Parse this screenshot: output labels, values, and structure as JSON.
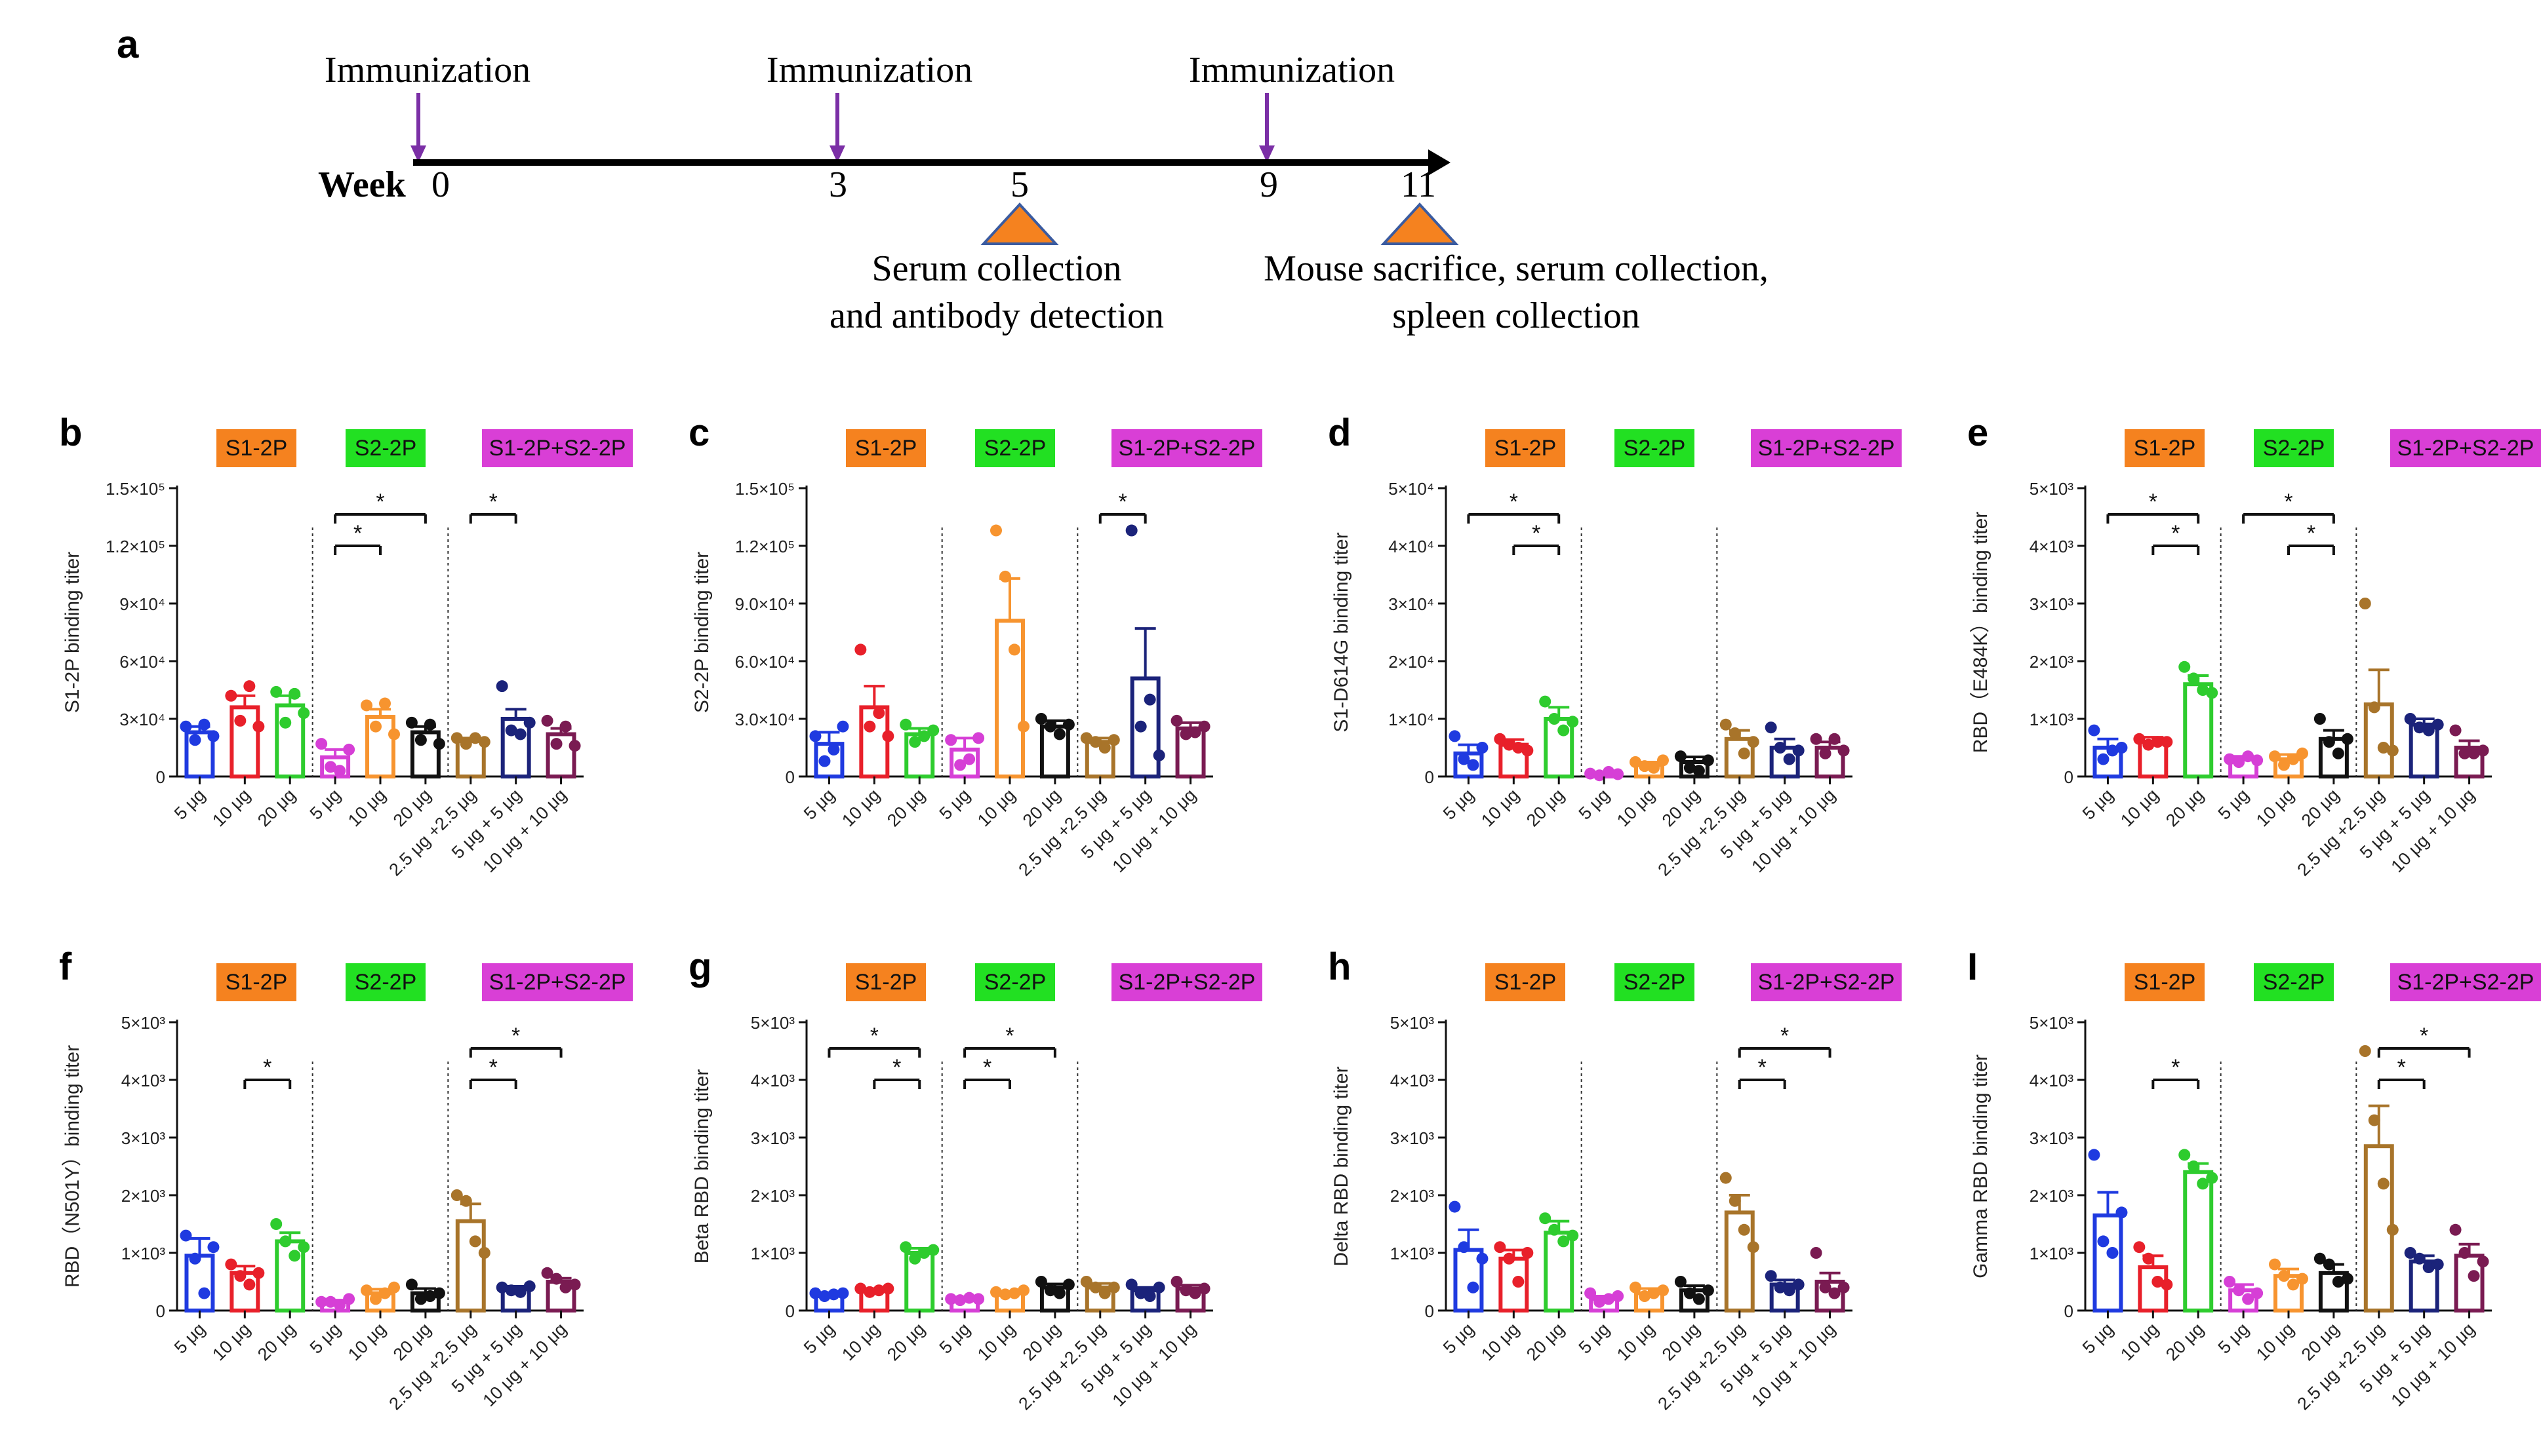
{
  "figure": {
    "colors": {
      "S1-2P": "#f5821f",
      "S2-2P": "#22e022",
      "S1-2P+S2-2P": "#d93fd6",
      "axis": "#111111",
      "timeline_arrow": "#7b2fa6",
      "collect_triangle": "#f5821f",
      "collect_triangle_edge": "#3a5ba0"
    },
    "panel_a": {
      "letter": "a",
      "week_label": "Week",
      "immunization_label": "Immunization",
      "weeks": [
        "0",
        "3",
        "5",
        "9",
        "11"
      ],
      "events": [
        {
          "lines": [
            "Serum collection",
            "and antibody detection"
          ]
        },
        {
          "lines": [
            "Mouse sacrifice, serum collection,",
            "spleen collection"
          ]
        }
      ]
    }
  },
  "chart_data": [
    {
      "panel": "b",
      "type": "bar",
      "ylabel": "S1-2P binding titer",
      "yticks": [
        "0",
        "3×10⁴",
        "6×10⁴",
        "9×10⁴",
        "1.2×10⁵",
        "1.5×10⁵"
      ],
      "ylim": [
        0,
        150000
      ],
      "groups": [
        "S1-2P",
        "S2-2P",
        "S1-2P+S2-2P"
      ],
      "categories": [
        "5 μg",
        "10 μg",
        "20 μg",
        "5 μg",
        "10 μg",
        "20 μg",
        "2.5 μg +2.5 μg",
        "5 μg + 5 μg",
        "10 μg + 10 μg"
      ],
      "colors": [
        "#1f3ae0",
        "#e8202a",
        "#2ecc2e",
        "#d63fd6",
        "#f7942f",
        "#111111",
        "#a8742a",
        "#1b237a",
        "#7a1b52"
      ],
      "means": [
        23000,
        36000,
        37000,
        10000,
        31000,
        23000,
        19000,
        30000,
        22000
      ],
      "errors": [
        3000,
        6000,
        5000,
        4000,
        4000,
        3000,
        1000,
        5000,
        3000
      ],
      "points": [
        [
          26000,
          19000,
          27000,
          21000
        ],
        [
          42000,
          29000,
          47000,
          26000
        ],
        [
          44000,
          28000,
          43000,
          33000
        ],
        [
          17000,
          5000,
          3000,
          14000
        ],
        [
          37000,
          26000,
          38000,
          22000
        ],
        [
          28000,
          19000,
          27000,
          17000
        ],
        [
          20000,
          17000,
          20000,
          18000
        ],
        [
          47000,
          24000,
          22000,
          28000
        ],
        [
          29000,
          17000,
          26000,
          16000
        ]
      ],
      "sig": [
        {
          "i": 3,
          "j": 4,
          "label": "*",
          "level": 0
        },
        {
          "i": 3,
          "j": 5,
          "label": "*",
          "level": 1
        },
        {
          "i": 6,
          "j": 7,
          "label": "*",
          "level": 1
        }
      ]
    },
    {
      "panel": "c",
      "type": "bar",
      "ylabel": "S2-2P binding titer",
      "yticks": [
        "0",
        "3.0×10⁴",
        "6.0×10⁴",
        "9.0×10⁴",
        "1.2×10⁵",
        "1.5×10⁵"
      ],
      "ylim": [
        0,
        150000
      ],
      "groups": [
        "S1-2P",
        "S2-2P",
        "S1-2P+S2-2P"
      ],
      "categories": [
        "5 μg",
        "10 μg",
        "20 μg",
        "5 μg",
        "10 μg",
        "20 μg",
        "2.5 μg +2.5 μg",
        "5 μg + 5 μg",
        "10 μg + 10 μg"
      ],
      "colors": [
        "#1f3ae0",
        "#e8202a",
        "#2ecc2e",
        "#d63fd6",
        "#f7942f",
        "#111111",
        "#a8742a",
        "#1b237a",
        "#7a1b52"
      ],
      "means": [
        17000,
        36000,
        22000,
        14000,
        81000,
        26000,
        18000,
        51000,
        25000
      ],
      "errors": [
        6000,
        11000,
        3000,
        6000,
        22000,
        3000,
        2000,
        26000,
        3000
      ],
      "points": [
        [
          21000,
          8000,
          14000,
          26000
        ],
        [
          66000,
          26000,
          33000,
          21000
        ],
        [
          27000,
          18000,
          21000,
          24000
        ],
        [
          19000,
          6000,
          9000,
          20000
        ],
        [
          128000,
          104000,
          66000,
          26000
        ],
        [
          30000,
          26000,
          22000,
          27000
        ],
        [
          20000,
          18000,
          15000,
          19000
        ],
        [
          128000,
          26000,
          40000,
          11000
        ],
        [
          29000,
          22000,
          23000,
          26000
        ]
      ],
      "sig": [
        {
          "i": 6,
          "j": 7,
          "label": "*",
          "level": 1
        }
      ]
    },
    {
      "panel": "d",
      "type": "bar",
      "ylabel": "S1-D614G binding titer",
      "yticks": [
        "0",
        "1×10⁴",
        "2×10⁴",
        "3×10⁴",
        "4×10⁴",
        "5×10⁴"
      ],
      "ylim": [
        0,
        50000
      ],
      "groups": [
        "S1-2P",
        "S2-2P",
        "S1-2P+S2-2P"
      ],
      "categories": [
        "5 μg",
        "10 μg",
        "20 μg",
        "5 μg",
        "10 μg",
        "20 μg",
        "2.5 μg +2.5 μg",
        "5 μg + 5 μg",
        "10 μg + 10 μg"
      ],
      "colors": [
        "#1f3ae0",
        "#e8202a",
        "#2ecc2e",
        "#d63fd6",
        "#f7942f",
        "#111111",
        "#a8742a",
        "#1b237a",
        "#7a1b52"
      ],
      "means": [
        4000,
        5500,
        10000,
        500,
        2000,
        2500,
        6500,
        5000,
        5000
      ],
      "errors": [
        1500,
        900,
        2000,
        300,
        500,
        900,
        1500,
        1500,
        1000
      ],
      "points": [
        [
          7000,
          3000,
          2000,
          5000
        ],
        [
          6500,
          5500,
          5000,
          4500
        ],
        [
          13000,
          10000,
          8000,
          9500
        ],
        [
          500,
          200,
          800,
          400
        ],
        [
          2500,
          1800,
          1500,
          2800
        ],
        [
          3500,
          1500,
          1000,
          2800
        ],
        [
          9000,
          7500,
          4000,
          6000
        ],
        [
          8500,
          5000,
          3000,
          4500
        ],
        [
          6500,
          4000,
          6500,
          4500
        ]
      ],
      "sig": [
        {
          "i": 1,
          "j": 2,
          "label": "*",
          "level": 0
        },
        {
          "i": 0,
          "j": 2,
          "label": "*",
          "level": 1
        }
      ]
    },
    {
      "panel": "e",
      "type": "bar",
      "ylabel": "RBD（E484K）binding titer",
      "yticks": [
        "0",
        "1×10³",
        "2×10³",
        "3×10³",
        "4×10³",
        "5×10³"
      ],
      "ylim": [
        0,
        5000
      ],
      "groups": [
        "S1-2P",
        "S2-2P",
        "S1-2P+S2-2P"
      ],
      "categories": [
        "5 μg",
        "10 μg",
        "20 μg",
        "5 μg",
        "10 μg",
        "20 μg",
        "2.5 μg +2.5 μg",
        "5 μg + 5 μg",
        "10 μg + 10 μg"
      ],
      "colors": [
        "#1f3ae0",
        "#e8202a",
        "#2ecc2e",
        "#d63fd6",
        "#f7942f",
        "#111111",
        "#a8742a",
        "#1b237a",
        "#7a1b52"
      ],
      "means": [
        500,
        600,
        1600,
        300,
        300,
        650,
        1250,
        900,
        500
      ],
      "errors": [
        150,
        80,
        150,
        50,
        80,
        150,
        600,
        100,
        120
      ],
      "points": [
        [
          800,
          300,
          450,
          500
        ],
        [
          650,
          550,
          600,
          600
        ],
        [
          1900,
          1700,
          1500,
          1450
        ],
        [
          300,
          250,
          350,
          280
        ],
        [
          350,
          200,
          300,
          400
        ],
        [
          1000,
          600,
          400,
          650
        ],
        [
          3000,
          1200,
          500,
          450
        ],
        [
          1000,
          850,
          800,
          900
        ],
        [
          800,
          400,
          400,
          450
        ]
      ],
      "sig": [
        {
          "i": 1,
          "j": 2,
          "label": "*",
          "level": 0
        },
        {
          "i": 0,
          "j": 2,
          "label": "*",
          "level": 1
        },
        {
          "i": 4,
          "j": 5,
          "label": "*",
          "level": 0
        },
        {
          "i": 3,
          "j": 5,
          "label": "*",
          "level": 1
        }
      ]
    },
    {
      "panel": "f",
      "type": "bar",
      "ylabel": "RBD（N501Y）binding titer",
      "yticks": [
        "0",
        "1×10³",
        "2×10³",
        "3×10³",
        "4×10³",
        "5×10³"
      ],
      "ylim": [
        0,
        5000
      ],
      "groups": [
        "S1-2P",
        "S2-2P",
        "S1-2P+S2-2P"
      ],
      "categories": [
        "5 μg",
        "10 μg",
        "20 μg",
        "5 μg",
        "10 μg",
        "20 μg",
        "2.5 μg +2.5 μg",
        "5 μg + 5 μg",
        "10 μg + 10 μg"
      ],
      "colors": [
        "#1f3ae0",
        "#e8202a",
        "#2ecc2e",
        "#d63fd6",
        "#f7942f",
        "#111111",
        "#a8742a",
        "#1b237a",
        "#7a1b52"
      ],
      "means": [
        950,
        650,
        1200,
        150,
        300,
        300,
        1550,
        380,
        500
      ],
      "errors": [
        300,
        120,
        150,
        30,
        70,
        80,
        300,
        40,
        60
      ],
      "points": [
        [
          1300,
          900,
          300,
          1100
        ],
        [
          800,
          600,
          450,
          650
        ],
        [
          1500,
          1200,
          950,
          1100
        ],
        [
          150,
          150,
          100,
          200
        ],
        [
          350,
          200,
          300,
          400
        ],
        [
          450,
          200,
          250,
          300
        ],
        [
          2000,
          1900,
          1200,
          1000
        ],
        [
          400,
          350,
          320,
          420
        ],
        [
          650,
          550,
          400,
          450
        ]
      ],
      "sig": [
        {
          "i": 1,
          "j": 2,
          "label": "*",
          "level": 0
        },
        {
          "i": 6,
          "j": 7,
          "label": "*",
          "level": 0
        },
        {
          "i": 6,
          "j": 8,
          "label": "*",
          "level": 1
        }
      ]
    },
    {
      "panel": "g",
      "type": "bar",
      "ylabel": "Beta RBD binding titer",
      "yticks": [
        "0",
        "1×10³",
        "2×10³",
        "3×10³",
        "4×10³",
        "5×10³"
      ],
      "ylim": [
        0,
        5000
      ],
      "groups": [
        "S1-2P",
        "S2-2P",
        "S1-2P+S2-2P"
      ],
      "categories": [
        "5 μg",
        "10 μg",
        "20 μg",
        "5 μg",
        "10 μg",
        "20 μg",
        "2.5 μg +2.5 μg",
        "5 μg + 5 μg",
        "10 μg + 10 μg"
      ],
      "colors": [
        "#1f3ae0",
        "#e8202a",
        "#2ecc2e",
        "#d63fd6",
        "#f7942f",
        "#111111",
        "#a8742a",
        "#1b237a",
        "#7a1b52"
      ],
      "means": [
        280,
        350,
        1000,
        200,
        300,
        400,
        400,
        350,
        380
      ],
      "errors": [
        30,
        30,
        80,
        20,
        30,
        60,
        70,
        50,
        60
      ],
      "points": [
        [
          300,
          250,
          280,
          300
        ],
        [
          380,
          320,
          350,
          380
        ],
        [
          1100,
          900,
          1000,
          1050
        ],
        [
          200,
          180,
          220,
          200
        ],
        [
          320,
          280,
          300,
          350
        ],
        [
          500,
          350,
          300,
          450
        ],
        [
          500,
          400,
          300,
          400
        ],
        [
          450,
          300,
          250,
          400
        ],
        [
          500,
          350,
          300,
          380
        ]
      ],
      "sig": [
        {
          "i": 1,
          "j": 2,
          "label": "*",
          "level": 0
        },
        {
          "i": 0,
          "j": 2,
          "label": "*",
          "level": 1
        },
        {
          "i": 3,
          "j": 4,
          "label": "*",
          "level": 0
        },
        {
          "i": 3,
          "j": 5,
          "label": "*",
          "level": 1
        }
      ]
    },
    {
      "panel": "h",
      "type": "bar",
      "ylabel": "Delta RBD binding titer",
      "yticks": [
        "0",
        "1×10³",
        "2×10³",
        "3×10³",
        "4×10³",
        "5×10³"
      ],
      "ylim": [
        0,
        5000
      ],
      "groups": [
        "S1-2P",
        "S2-2P",
        "S1-2P+S2-2P"
      ],
      "categories": [
        "5 μg",
        "10 μg",
        "20 μg",
        "5 μg",
        "10 μg",
        "20 μg",
        "2.5 μg +2.5 μg",
        "5 μg + 5 μg",
        "10 μg + 10 μg"
      ],
      "colors": [
        "#1f3ae0",
        "#e8202a",
        "#2ecc2e",
        "#d63fd6",
        "#f7942f",
        "#111111",
        "#a8742a",
        "#1b237a",
        "#7a1b52"
      ],
      "means": [
        1050,
        900,
        1350,
        200,
        300,
        350,
        1700,
        450,
        500
      ],
      "errors": [
        350,
        150,
        200,
        50,
        80,
        80,
        300,
        80,
        150
      ],
      "points": [
        [
          1800,
          1100,
          400,
          900
        ],
        [
          1100,
          900,
          500,
          1000
        ],
        [
          1600,
          1400,
          1200,
          1300
        ],
        [
          300,
          150,
          200,
          250
        ],
        [
          400,
          250,
          300,
          350
        ],
        [
          500,
          300,
          200,
          350
        ],
        [
          2300,
          1900,
          1400,
          1100
        ],
        [
          600,
          400,
          350,
          450
        ],
        [
          1000,
          400,
          300,
          400
        ]
      ],
      "sig": [
        {
          "i": 6,
          "j": 7,
          "label": "*",
          "level": 0
        },
        {
          "i": 6,
          "j": 8,
          "label": "*",
          "level": 1
        }
      ]
    },
    {
      "panel": "I",
      "type": "bar",
      "ylabel": "Gamma RBD binding titer",
      "yticks": [
        "0",
        "1×10³",
        "2×10³",
        "3×10³",
        "4×10³",
        "5×10³"
      ],
      "ylim": [
        0,
        5000
      ],
      "groups": [
        "S1-2P",
        "S2-2P",
        "S1-2P+S2-2P"
      ],
      "categories": [
        "5 μg",
        "10 μg",
        "20 μg",
        "5 μg",
        "10 μg",
        "20 μg",
        "2.5 μg +2.5 μg",
        "5 μg + 5 μg",
        "10 μg + 10 μg"
      ],
      "colors": [
        "#1f3ae0",
        "#e8202a",
        "#2ecc2e",
        "#d63fd6",
        "#f7942f",
        "#111111",
        "#a8742a",
        "#1b237a",
        "#7a1b52"
      ],
      "means": [
        1650,
        750,
        2400,
        350,
        600,
        650,
        2850,
        850,
        950
      ],
      "errors": [
        400,
        200,
        150,
        100,
        120,
        150,
        700,
        100,
        200
      ],
      "points": [
        [
          2700,
          1200,
          1000,
          1700
        ],
        [
          1100,
          900,
          500,
          450
        ],
        [
          2700,
          2500,
          2200,
          2300
        ],
        [
          500,
          350,
          200,
          300
        ],
        [
          800,
          600,
          450,
          550
        ],
        [
          900,
          800,
          500,
          550
        ],
        [
          4500,
          3300,
          2200,
          1400
        ],
        [
          1000,
          900,
          750,
          800
        ],
        [
          1400,
          1000,
          600,
          850
        ]
      ],
      "sig": [
        {
          "i": 1,
          "j": 2,
          "label": "*",
          "level": 0
        },
        {
          "i": 6,
          "j": 7,
          "label": "*",
          "level": 0
        },
        {
          "i": 6,
          "j": 8,
          "label": "*",
          "level": 1
        }
      ]
    }
  ]
}
